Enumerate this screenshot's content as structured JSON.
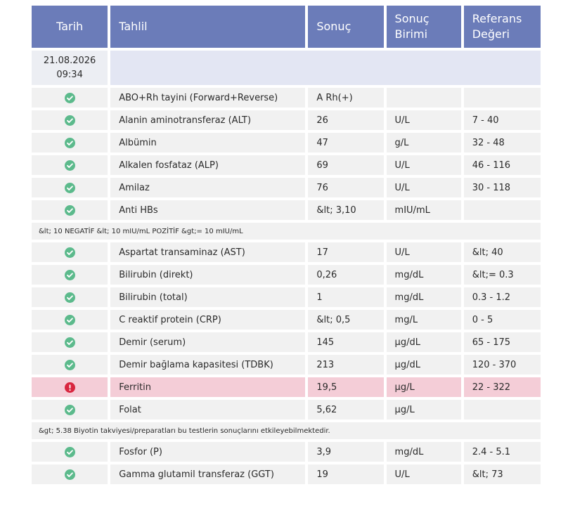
{
  "header": [
    "Tarih",
    "Tahlil",
    "Sonuç",
    "Sonuç Birimi",
    "Referans Değeri"
  ],
  "date": {
    "date": "21.08.2026",
    "time": "09:34"
  },
  "rows": [
    {
      "test": "ABO+Rh tayini (Forward+Reverse)",
      "result": "A Rh(+)"
    },
    {
      "test": "Alanin aminotransferaz (ALT)",
      "result": "26",
      "unit": "U/L",
      "reference": "7 - 40"
    },
    {
      "test": "Albümin",
      "result": "47",
      "unit": "g/L",
      "reference": "32 - 48"
    },
    {
      "test": "Alkalen fosfataz (ALP)",
      "result": "69",
      "unit": "U/L",
      "reference": "46 - 116"
    },
    {
      "test": "Amilaz",
      "result": "76",
      "unit": "U/L",
      "reference": "30 - 118"
    },
    {
      "test": "Anti HBs",
      "result": "&lt; 3,10",
      "unit": "mIU/mL"
    },
    {
      "note": "&lt; 10 NEGATİF &lt; 10 mIU/mL POZİTİF &gt;= 10 mIU/mL"
    },
    {
      "test": "Aspartat transaminaz (AST)",
      "result": "17",
      "unit": "U/L",
      "reference": "&lt; 40"
    },
    {
      "test": "Bilirubin (direkt)",
      "result": "0,26",
      "unit": "mg/dL",
      "reference": "&lt;= 0.3"
    },
    {
      "test": "Bilirubin (total)",
      "result": "1",
      "unit": "mg/dL",
      "reference": "0.3 - 1.2"
    },
    {
      "test": "C reaktif protein (CRP)",
      "result": "&lt; 0,5",
      "unit": "mg/L",
      "reference": "0 - 5"
    },
    {
      "test": "Demir (serum)",
      "result": "145",
      "unit": "µg/dL",
      "reference": "65 - 175"
    },
    {
      "test": "Demir bağlama kapasitesi (TDBK)",
      "result": "213",
      "unit": "µg/dL",
      "reference": "120 - 370"
    },
    {
      "test": "Ferritin",
      "result": "19,5",
      "unit": "µg/L",
      "reference": "22 - 322"
    },
    {
      "test": "Folat",
      "result": "5,62",
      "unit": "µg/L"
    },
    {
      "note": "&gt; 5.38 Biyotin takviyesi/preparatları bu testlerin sonuçlarını etkileyebilmektedir."
    },
    {
      "test": "Fosfor (P)",
      "result": "3,9",
      "unit": "mg/dL",
      "reference": "2.4 - 5.1"
    },
    {
      "test": "Gamma glutamil transferaz (GGT)",
      "result": "19",
      "unit": "U/L",
      "reference": "&lt; 73"
    }
  ]
}
